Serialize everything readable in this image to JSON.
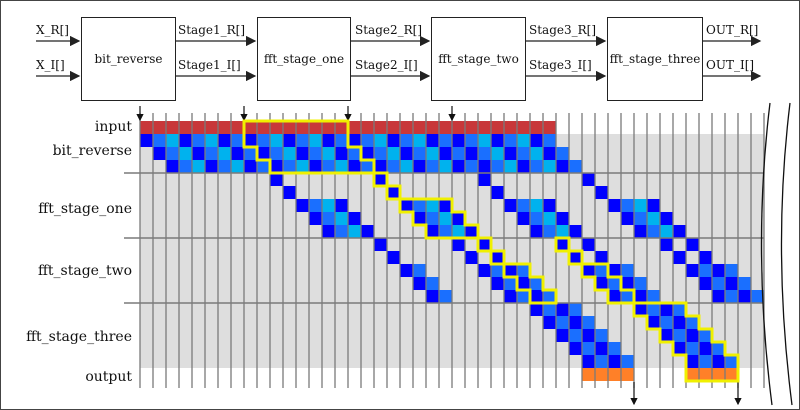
{
  "blocks": [
    {
      "label": "bit_reverse"
    },
    {
      "label": "fft_stage_one"
    },
    {
      "label": "fft_stage_two"
    },
    {
      "label": "fft_stage_three"
    }
  ],
  "signals": {
    "in_r": "X_R[]",
    "in_i": "X_I[]",
    "s1_r": "Stage1_R[]",
    "s1_i": "Stage1_I[]",
    "s2_r": "Stage2_R[]",
    "s2_i": "Stage2_I[]",
    "s3_r": "Stage3_R[]",
    "s3_i": "Stage3_I[]",
    "out_r": "OUT_R[]",
    "out_i": "OUT_I[]"
  },
  "rows": [
    "input",
    "bit_reverse",
    "fft_stage_one",
    "fft_stage_two",
    "fft_stage_three",
    "output"
  ],
  "colors": {
    "input": "#c8373a",
    "dark": "#0000ff",
    "mid": "#1a6fff",
    "light": "#00b2ee",
    "output": "#ff8028",
    "highlight": "#f0f000",
    "background": "#dedede",
    "grid": "#7a7a7a"
  },
  "schedule": {
    "columns": 48,
    "input_span": [
      0,
      31
    ],
    "input_arrows": [
      0,
      8,
      16,
      24
    ],
    "output_arrows": [
      38,
      46
    ],
    "bit_reverse_pattern": [
      "dark",
      "mid",
      "light",
      "dark",
      "mid",
      "light",
      "dark",
      "mid"
    ],
    "stage_one_starts": [
      10,
      18,
      26,
      34
    ],
    "stage_two_starts": [
      18,
      24,
      26,
      32,
      34,
      40,
      42
    ],
    "stage_three_starts": [
      30,
      38
    ],
    "highlight": {
      "input_cols": [
        8,
        15
      ],
      "stage_one": [
        18
      ],
      "stage_two": [
        26,
        32
      ],
      "stage_three": [
        38
      ]
    }
  }
}
